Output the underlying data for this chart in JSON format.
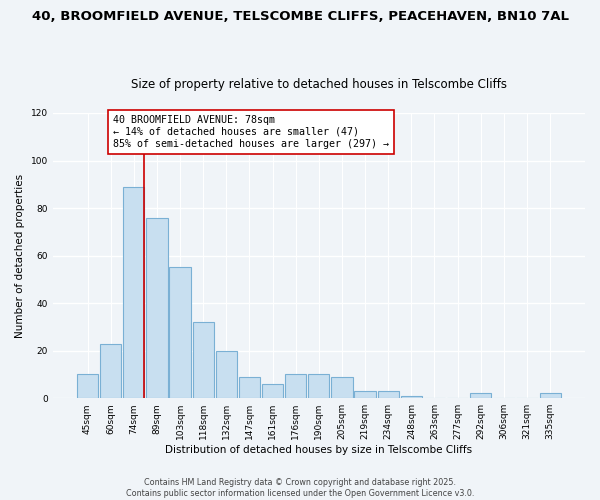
{
  "title1": "40, BROOMFIELD AVENUE, TELSCOMBE CLIFFS, PEACEHAVEN, BN10 7AL",
  "title2": "Size of property relative to detached houses in Telscombe Cliffs",
  "xlabel": "Distribution of detached houses by size in Telscombe Cliffs",
  "ylabel": "Number of detached properties",
  "bar_labels": [
    "45sqm",
    "60sqm",
    "74sqm",
    "89sqm",
    "103sqm",
    "118sqm",
    "132sqm",
    "147sqm",
    "161sqm",
    "176sqm",
    "190sqm",
    "205sqm",
    "219sqm",
    "234sqm",
    "248sqm",
    "263sqm",
    "277sqm",
    "292sqm",
    "306sqm",
    "321sqm",
    "335sqm"
  ],
  "bar_values": [
    10,
    23,
    89,
    76,
    55,
    32,
    20,
    9,
    6,
    10,
    10,
    9,
    3,
    3,
    1,
    0,
    0,
    2,
    0,
    0,
    2
  ],
  "bar_color": "#c8dff0",
  "bar_edge_color": "#7ab0d4",
  "vline_color": "#cc0000",
  "annotation_title": "40 BROOMFIELD AVENUE: 78sqm",
  "annotation_line1": "← 14% of detached houses are smaller (47)",
  "annotation_line2": "85% of semi-detached houses are larger (297) →",
  "annotation_box_color": "#ffffff",
  "annotation_box_edge": "#cc0000",
  "ylim": [
    0,
    120
  ],
  "yticks": [
    0,
    20,
    40,
    60,
    80,
    100,
    120
  ],
  "footer1": "Contains HM Land Registry data © Crown copyright and database right 2025.",
  "footer2": "Contains public sector information licensed under the Open Government Licence v3.0.",
  "bg_color": "#f0f4f8",
  "grid_color": "#ffffff",
  "title1_fontsize": 9.5,
  "title2_fontsize": 8.5,
  "ann_fontsize": 7.2,
  "footer_fontsize": 5.8
}
